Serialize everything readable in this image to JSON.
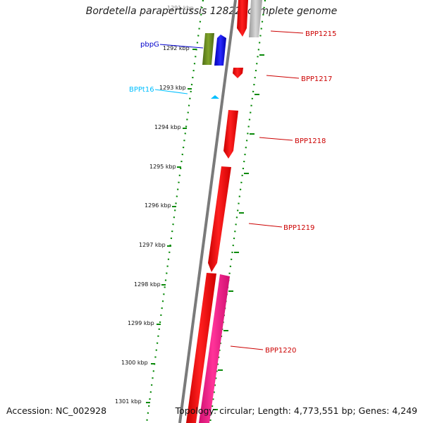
{
  "title": "Bordetella parapertussis 12822, complete genome",
  "footer": {
    "accession": "Accession: NC_002928",
    "summary": "Topology: circular; Length: 4,773,551 bp; Genes: 4,249"
  },
  "tick_labels": [
    "1291 kbp",
    "1292 kbp",
    "1293 kbp",
    "1294 kbp",
    "1295 kbp",
    "1296 kbp",
    "1297 kbp",
    "1298 kbp",
    "1299 kbp",
    "1300 kbp",
    "1301 kbp"
  ],
  "gene_labels": {
    "pbpG": "pbpG",
    "BPPt16": "BPPt16",
    "BPP1215": "BPP1215",
    "BPP1217": "BPP1217",
    "BPP1218": "BPP1218",
    "BPP1219": "BPP1219",
    "BPP1220": "BPP1220"
  },
  "colors": {
    "backbone": "#808080",
    "gene_red": "#ff0000",
    "gene_pink": "#ff1493",
    "gene_olive": "#6b8e23",
    "gene_blue": "#0000ff",
    "gene_gray": "#c0c0c0",
    "trna_cyan": "#00bfff",
    "tick_green": "#008000",
    "label_red": "#cc0000",
    "label_blue": "#0000cc",
    "label_cyan": "#00bfff"
  }
}
